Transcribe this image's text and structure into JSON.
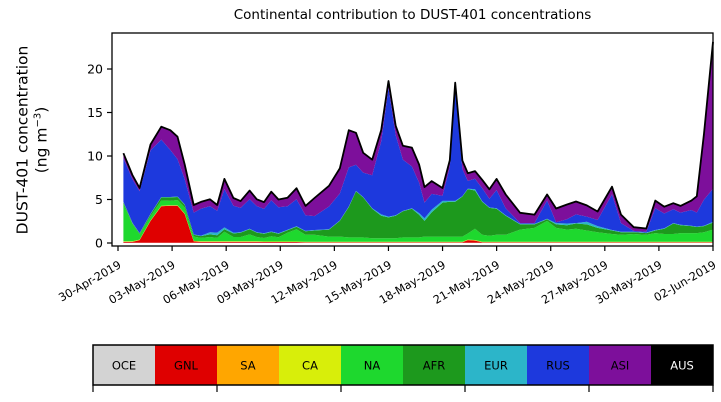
{
  "figure": {
    "title": "Continental contribution to DUST-401 concentrations",
    "ylabel_line1": "DUST-401 concentration",
    "ylabel_unit_prefix": "(ng m",
    "ylabel_unit_exponent": "−3",
    "ylabel_unit_suffix": ")"
  },
  "chart_data": {
    "type": "area",
    "stacked": true,
    "title": "Continental contribution to DUST-401 concentrations",
    "xlabel": "",
    "ylabel": "DUST-401 concentration (ng m-3)",
    "x_unit": "days since 30-Apr-2019",
    "grid": false,
    "legend_position": "bottom",
    "ylim": [
      0,
      24.2
    ],
    "y_ticks": [
      0,
      5,
      10,
      15,
      20
    ],
    "x_tick_days": [
      0,
      3,
      6,
      9,
      12,
      15,
      18,
      21,
      24,
      27,
      30,
      33
    ],
    "x_tick_labels": [
      "30-Apr-2019",
      "03-May-2019",
      "06-May-2019",
      "09-May-2019",
      "12-May-2019",
      "15-May-2019",
      "18-May-2019",
      "21-May-2019",
      "24-May-2019",
      "27-May-2019",
      "30-May-2019",
      "02-Jun-2019"
    ],
    "outline_color": "#000000",
    "x": [
      0.3,
      0.8,
      1.2,
      1.8,
      2.4,
      2.9,
      3.3,
      3.7,
      4.2,
      4.6,
      5.1,
      5.5,
      5.9,
      6.4,
      6.8,
      7.3,
      7.7,
      8.1,
      8.5,
      8.9,
      9.4,
      9.9,
      10.4,
      10.9,
      11.7,
      12.3,
      12.8,
      13.2,
      13.6,
      14.1,
      14.6,
      15.0,
      15.4,
      15.8,
      16.3,
      16.7,
      17.0,
      17.4,
      18.0,
      18.4,
      18.7,
      19.1,
      19.4,
      19.8,
      20.2,
      20.6,
      21.0,
      21.5,
      22.3,
      23.1,
      23.8,
      24.3,
      24.9,
      25.4,
      26.0,
      26.6,
      27.4,
      27.9,
      28.6,
      29.3,
      29.8,
      30.3,
      30.8,
      31.2,
      31.8,
      32.1,
      32.5,
      33.0
    ],
    "series": [
      {
        "name": "OCE",
        "color": "#d3d3d3",
        "const": 0.03
      },
      {
        "name": "GNL",
        "color": "#df0000",
        "values": [
          0.1,
          0.1,
          0.3,
          2.5,
          4.2,
          4.25,
          4.25,
          3.3,
          0.15,
          0.1,
          0.1,
          0.1,
          0.1,
          0.1,
          0.1,
          0.1,
          0.1,
          0.08,
          0.08,
          0.08,
          0.08,
          0.08,
          0.05,
          0.05,
          0.05,
          0.05,
          0.05,
          0.05,
          0.05,
          0.05,
          0.05,
          0.05,
          0.05,
          0.05,
          0.05,
          0.05,
          0.05,
          0.05,
          0.05,
          0.05,
          0.05,
          0.05,
          0.3,
          0.25,
          0.05,
          0.05,
          0.05,
          0.05,
          0.05,
          0.05,
          0.05,
          0.05,
          0.05,
          0.05,
          0.05,
          0.05,
          0.05,
          0.05,
          0.05,
          0.05,
          0.05,
          0.05,
          0.05,
          0.05,
          0.05,
          0.05,
          0.05,
          0.05
        ]
      },
      {
        "name": "SA",
        "color": "#ffa600",
        "const": 0.02
      },
      {
        "name": "CA",
        "color": "#d8ee0a",
        "const": 0.04
      },
      {
        "name": "NA",
        "color": "#1ed82e",
        "values": [
          4.3,
          2.0,
          0.6,
          0.5,
          0.6,
          0.5,
          0.6,
          0.7,
          0.5,
          0.4,
          0.5,
          0.4,
          1.1,
          0.5,
          0.5,
          0.8,
          0.5,
          0.4,
          0.6,
          0.5,
          1.0,
          1.4,
          0.8,
          0.8,
          0.6,
          0.6,
          0.5,
          0.5,
          0.5,
          0.4,
          0.4,
          0.4,
          0.4,
          0.5,
          0.5,
          0.5,
          0.6,
          0.6,
          0.6,
          0.6,
          0.6,
          0.6,
          0.7,
          1.3,
          0.8,
          0.7,
          0.8,
          0.8,
          1.4,
          1.6,
          2.4,
          1.6,
          1.4,
          1.5,
          1.3,
          1.1,
          0.9,
          0.8,
          0.9,
          0.8,
          1.0,
          0.9,
          0.9,
          1.0,
          1.0,
          1.0,
          1.1,
          1.4
        ]
      },
      {
        "name": "AFR",
        "color": "#1d991d",
        "values": [
          0.2,
          0.1,
          0.1,
          0.2,
          0.35,
          0.4,
          0.35,
          0.3,
          0.2,
          0.2,
          0.3,
          0.3,
          0.3,
          0.4,
          0.5,
          0.6,
          0.5,
          0.5,
          0.5,
          0.4,
          0.3,
          0.3,
          0.4,
          0.5,
          0.8,
          1.8,
          3.5,
          5.3,
          4.6,
          3.4,
          2.6,
          2.4,
          2.6,
          3.0,
          3.3,
          2.6,
          1.8,
          2.8,
          3.9,
          4.0,
          4.0,
          4.6,
          5.1,
          4.4,
          3.8,
          3.2,
          3.0,
          2.2,
          0.6,
          0.4,
          0.2,
          0.4,
          0.5,
          0.6,
          0.7,
          0.5,
          0.4,
          0.3,
          0.2,
          0.2,
          0.3,
          0.6,
          1.2,
          0.9,
          0.8,
          0.7,
          0.7,
          0.8
        ]
      },
      {
        "name": "EUR",
        "color": "#2cb5c9",
        "values": [
          0.05,
          0.05,
          0.05,
          0.05,
          0.05,
          0.05,
          0.05,
          0.05,
          0.05,
          0.05,
          0.25,
          0.3,
          0.2,
          0.1,
          0.05,
          0.05,
          0.05,
          0.05,
          0.05,
          0.05,
          0.05,
          0.05,
          0.05,
          0.05,
          0.05,
          0.05,
          0.05,
          0.05,
          0.05,
          0.05,
          0.15,
          0.1,
          0.05,
          0.05,
          0.05,
          0.2,
          0.3,
          0.3,
          0.2,
          0.1,
          0.1,
          0.05,
          0.05,
          0.15,
          0.05,
          0.05,
          0.05,
          0.05,
          0.05,
          0.05,
          0.05,
          0.15,
          0.2,
          0.05,
          0.3,
          0.2,
          0.05,
          0.05,
          0.05,
          0.05,
          0.05,
          0.05,
          0.05,
          0.05,
          0.05,
          0.05,
          0.05,
          0.1
        ]
      },
      {
        "name": "RUS",
        "color": "#1d39dd",
        "values": [
          5.0,
          5.0,
          4.8,
          7.3,
          6.6,
          5.4,
          4.3,
          2.9,
          2.5,
          3.1,
          3.0,
          2.5,
          4.4,
          3.1,
          2.8,
          3.4,
          3.0,
          2.8,
          3.6,
          3.0,
          2.7,
          3.1,
          1.8,
          1.6,
          2.6,
          3.1,
          4.5,
          3.0,
          2.8,
          3.8,
          8.4,
          14.8,
          9.2,
          5.9,
          4.8,
          3.5,
          1.8,
          1.8,
          0.6,
          3.9,
          12.9,
          3.1,
          0.9,
          1.2,
          1.5,
          1.0,
          2.1,
          0.8,
          0.1,
          0.1,
          2.1,
          0.1,
          0.5,
          1.0,
          0.6,
          0.7,
          4.1,
          1.0,
          0.1,
          0.1,
          2.5,
          1.7,
          1.6,
          1.4,
          1.8,
          1.6,
          3.0,
          3.8
        ]
      },
      {
        "name": "ASI",
        "color": "#7d0f9b",
        "values": [
          0.5,
          0.4,
          0.3,
          0.6,
          1.4,
          2.2,
          2.5,
          1.6,
          0.8,
          0.7,
          0.7,
          0.6,
          1.1,
          0.8,
          0.7,
          0.9,
          0.7,
          0.7,
          0.9,
          0.8,
          0.9,
          1.2,
          1.0,
          2.0,
          2.3,
          2.8,
          4.2,
          3.6,
          2.2,
          1.7,
          1.2,
          0.7,
          1.0,
          1.5,
          2.1,
          2.0,
          1.7,
          1.4,
          0.8,
          0.7,
          0.6,
          0.9,
          0.8,
          0.8,
          0.9,
          1.0,
          1.2,
          1.5,
          1.1,
          0.9,
          0.6,
          1.5,
          1.6,
          1.4,
          1.2,
          0.9,
          0.8,
          0.9,
          0.35,
          0.3,
          0.8,
          0.7,
          0.6,
          0.7,
          1.0,
          1.8,
          7.5,
          16.8
        ]
      },
      {
        "name": "AUS",
        "color": "#000000",
        "const": 0.08,
        "label_color": "#ffffff"
      }
    ]
  },
  "legend": {
    "tick_count": 6
  }
}
